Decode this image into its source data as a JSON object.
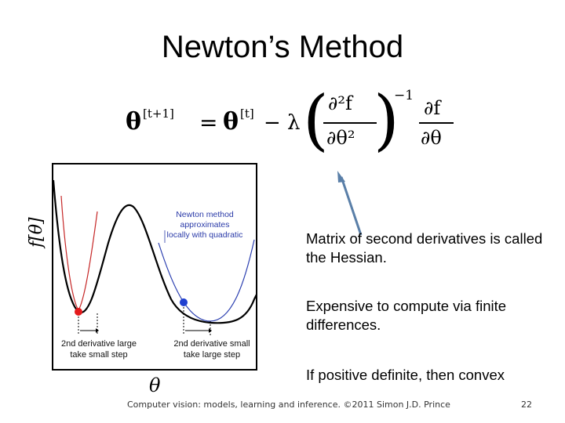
{
  "slide": {
    "title": "Newton’s Method",
    "equation": {
      "lhs_theta": "θ",
      "lhs_sup": "[t+1]",
      "equals": "=",
      "rhs_theta": "θ",
      "rhs_sup": "[t]",
      "minus_lambda": "− λ",
      "hess_num": "∂²f",
      "hess_den": "∂θ²",
      "inv_exp": "−1",
      "grad_num": "∂f",
      "grad_den": "∂θ"
    },
    "graph": {
      "y_label": "f[θ]",
      "x_label": "θ",
      "annotation": [
        "Newton method",
        "approximates",
        "locally with quadratic"
      ],
      "left_caption": [
        "2nd derivative large",
        "take small step"
      ],
      "right_caption": [
        "2nd derivative small",
        "take large step"
      ],
      "colors": {
        "left_point": "#e41a1c",
        "right_point": "#1f3fd0",
        "left_quad": "#c62828",
        "right_quad": "#2b3fb0",
        "curve": "#000000"
      }
    },
    "points": [
      "Matrix of second derivatives is called the Hessian.",
      "Expensive to compute via finite differences.",
      "If positive definite, then convex"
    ],
    "footer_left": "Computer vision: models, learning and inference.  ©2011 Simon J.D. Prince",
    "page_number": "22"
  }
}
